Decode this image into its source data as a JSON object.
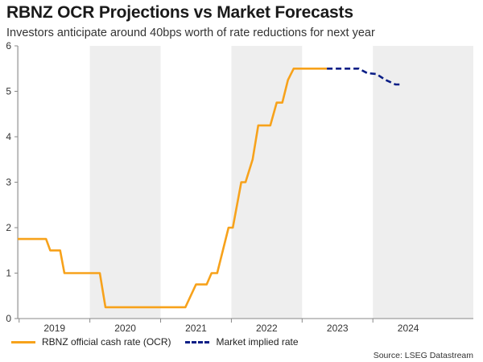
{
  "title": "RBNZ OCR Projections vs Market Forecasts",
  "subtitle": "Investors anticipate around 40bps worth of rate reductions for next year",
  "source": "Source: LSEG Datastream",
  "colors": {
    "ocr": "#F7A21B",
    "market": "#0B1E86",
    "shade": "#EEEEEE",
    "axis": "#888888"
  },
  "chart_data": {
    "type": "line",
    "title": "RBNZ OCR Projections vs Market Forecasts",
    "xlabel": "",
    "ylabel": "",
    "xlim": [
      2018.48,
      2024.92
    ],
    "ylim": [
      0,
      6
    ],
    "yticks": [
      0,
      1,
      2,
      3,
      4,
      5,
      6
    ],
    "year_labels": [
      {
        "label": "2019",
        "x": 2019.0
      },
      {
        "label": "2020",
        "x": 2020.0
      },
      {
        "label": "2021",
        "x": 2021.0
      },
      {
        "label": "2022",
        "x": 2022.0
      },
      {
        "label": "2023",
        "x": 2023.0
      },
      {
        "label": "2024",
        "x": 2024.0
      }
    ],
    "shaded_years": [
      [
        2018.48,
        2018.5
      ],
      [
        2019.5,
        2020.5
      ],
      [
        2021.5,
        2022.5
      ],
      [
        2023.5,
        2024.92
      ]
    ],
    "series": [
      {
        "name": "RBNZ official cash rate (OCR)",
        "style": "solid",
        "points": [
          [
            2018.48,
            1.75
          ],
          [
            2018.88,
            1.75
          ],
          [
            2018.94,
            1.5
          ],
          [
            2019.08,
            1.5
          ],
          [
            2019.14,
            1.0
          ],
          [
            2019.64,
            1.0
          ],
          [
            2019.72,
            0.25
          ],
          [
            2020.85,
            0.25
          ],
          [
            2021.0,
            0.75
          ],
          [
            2021.15,
            0.75
          ],
          [
            2021.22,
            1.0
          ],
          [
            2021.3,
            1.0
          ],
          [
            2021.46,
            2.0
          ],
          [
            2021.52,
            2.0
          ],
          [
            2021.64,
            3.0
          ],
          [
            2021.7,
            3.0
          ],
          [
            2021.8,
            3.5
          ],
          [
            2021.88,
            4.25
          ],
          [
            2022.05,
            4.25
          ],
          [
            2022.14,
            4.75
          ],
          [
            2022.22,
            4.75
          ],
          [
            2022.3,
            5.25
          ],
          [
            2022.38,
            5.5
          ],
          [
            2022.85,
            5.5
          ]
        ]
      },
      {
        "name": "Market implied rate",
        "style": "dashed",
        "points": [
          [
            2022.85,
            5.5
          ],
          [
            2023.3,
            5.5
          ],
          [
            2023.42,
            5.4
          ],
          [
            2023.55,
            5.38
          ],
          [
            2023.68,
            5.25
          ],
          [
            2023.82,
            5.15
          ],
          [
            2023.92,
            5.15
          ]
        ]
      }
    ]
  }
}
